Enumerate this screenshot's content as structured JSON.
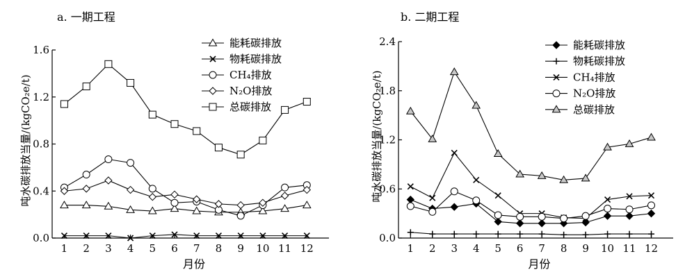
{
  "chart_data": [
    {
      "type": "line",
      "title": "a. 一期工程",
      "xlabel": "月份",
      "ylabel": "吨水碳排放当量/(kgCO₂e/t)",
      "categories": [
        1,
        2,
        3,
        4,
        5,
        6,
        7,
        8,
        9,
        10,
        11,
        12
      ],
      "ylim": [
        0,
        1.6
      ],
      "yticks": [
        0.0,
        0.4,
        0.8,
        1.2,
        1.6
      ],
      "ytick_labels": [
        "0.0",
        "0.4",
        "0.8",
        "1.2",
        "1.6"
      ],
      "legend_position": "top-right",
      "grid": false,
      "series": [
        {
          "name": "能耗碳排放",
          "marker": "triangle-open",
          "values": [
            0.28,
            0.28,
            0.27,
            0.24,
            0.23,
            0.25,
            0.23,
            0.22,
            0.22,
            0.23,
            0.25,
            0.28
          ]
        },
        {
          "name": "物耗碳排放",
          "marker": "x",
          "values": [
            0.02,
            0.02,
            0.02,
            0.0,
            0.02,
            0.03,
            0.02,
            0.02,
            0.02,
            0.02,
            0.02,
            0.02
          ]
        },
        {
          "name": "CH₄排放",
          "marker": "circle-open",
          "values": [
            0.43,
            0.54,
            0.67,
            0.64,
            0.42,
            0.3,
            0.31,
            0.24,
            0.19,
            0.28,
            0.43,
            0.45
          ]
        },
        {
          "name": "N₂O排放",
          "marker": "diamond-open",
          "values": [
            0.4,
            0.42,
            0.49,
            0.41,
            0.35,
            0.37,
            0.33,
            0.29,
            0.28,
            0.3,
            0.36,
            0.41
          ]
        },
        {
          "name": "总碳排放",
          "marker": "square-open",
          "values": [
            1.14,
            1.29,
            1.48,
            1.32,
            1.05,
            0.97,
            0.91,
            0.77,
            0.71,
            0.83,
            1.09,
            1.16
          ]
        }
      ]
    },
    {
      "type": "line",
      "title": "b. 二期工程",
      "xlabel": "月份",
      "ylabel": "吨水碳排放当量/(kgCO₂e/t)",
      "categories": [
        1,
        2,
        3,
        4,
        5,
        6,
        7,
        8,
        9,
        10,
        11,
        12
      ],
      "ylim": [
        0,
        2.4
      ],
      "yticks": [
        0.0,
        0.6,
        1.2,
        1.8,
        2.4
      ],
      "ytick_labels": [
        "0.0",
        "0.6",
        "1.2",
        "1.8",
        "2.4"
      ],
      "legend_position": "top-right",
      "grid": false,
      "series": [
        {
          "name": "能耗碳排放",
          "marker": "diamond-filled",
          "values": [
            0.47,
            0.36,
            0.38,
            0.42,
            0.2,
            0.18,
            0.18,
            0.18,
            0.19,
            0.27,
            0.27,
            0.3
          ]
        },
        {
          "name": "物耗碳排放",
          "marker": "plus",
          "values": [
            0.07,
            0.05,
            0.05,
            0.05,
            0.05,
            0.05,
            0.05,
            0.04,
            0.04,
            0.05,
            0.05,
            0.05
          ]
        },
        {
          "name": "CH₄排放",
          "marker": "x",
          "values": [
            0.63,
            0.49,
            1.04,
            0.71,
            0.52,
            0.3,
            0.3,
            0.25,
            0.24,
            0.47,
            0.51,
            0.52
          ]
        },
        {
          "name": "N₂O排放",
          "marker": "circle-open",
          "values": [
            0.39,
            0.32,
            0.57,
            0.46,
            0.28,
            0.26,
            0.26,
            0.24,
            0.27,
            0.36,
            0.35,
            0.4
          ]
        },
        {
          "name": "总碳排放",
          "marker": "triangle-filled",
          "values": [
            1.55,
            1.21,
            2.03,
            1.62,
            1.03,
            0.78,
            0.76,
            0.71,
            0.73,
            1.11,
            1.15,
            1.23
          ]
        }
      ]
    }
  ]
}
